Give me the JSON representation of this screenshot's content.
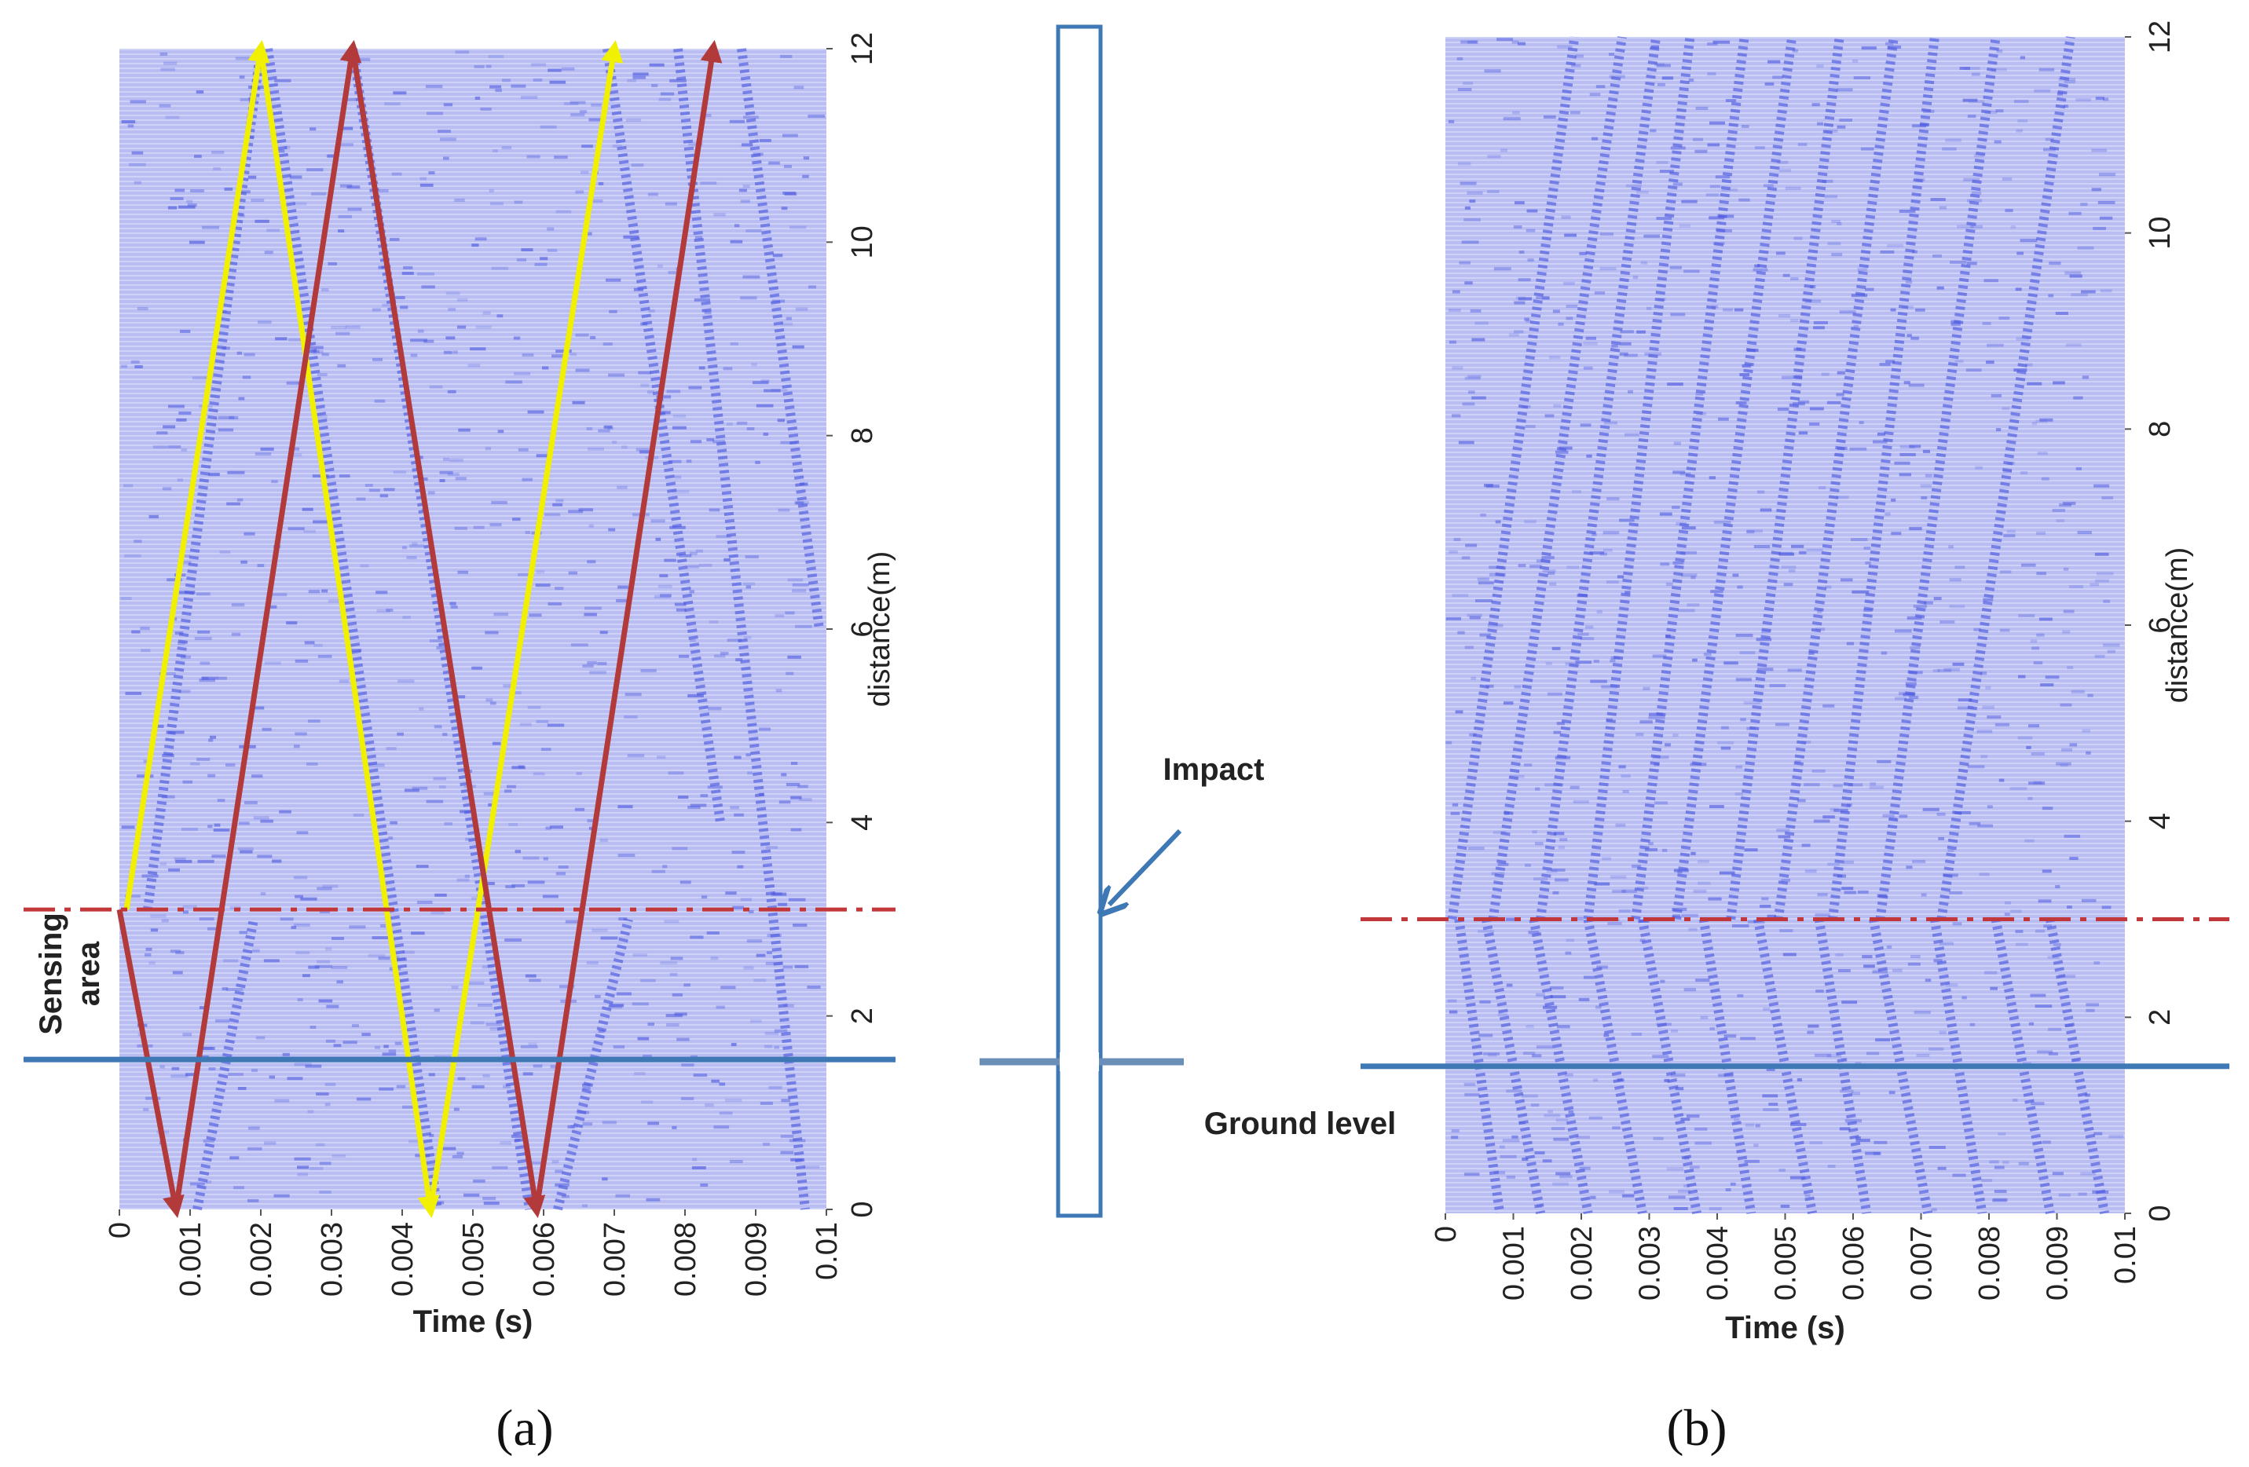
{
  "chart_data": [
    {
      "id": "a",
      "type": "heatmap",
      "description_label": "(a)",
      "caption_letter": "a",
      "xlabel": "Time (s)",
      "ylabel": "distance(m)",
      "xlim": [
        0,
        0.01
      ],
      "ylim": [
        0,
        12
      ],
      "xticks": [
        0,
        0.001,
        0.002,
        0.003,
        0.004,
        0.005,
        0.006,
        0.007,
        0.008,
        0.009,
        0.01
      ],
      "xtick_labels": [
        "0",
        "0.001",
        "0.002",
        "0.003",
        "0.004",
        "0.005",
        "0.006",
        "0.007",
        "0.008",
        "0.009",
        "0.01"
      ],
      "yticks": [
        0,
        2,
        4,
        6,
        8,
        10,
        12
      ],
      "ytick_labels": [
        "0",
        "2",
        "4",
        "6",
        "8",
        "10",
        "12"
      ],
      "dashed_line_distance": 3.1,
      "ground_line_distance": 1.55,
      "sensing_area_label": [
        "Sensing",
        "area"
      ],
      "arrow_paths": [
        {
          "color": "#f0f000",
          "name": "yellow-wave-path",
          "points": [
            [
              0.0001,
              3.1
            ],
            [
              0.002,
              12
            ],
            [
              0.0044,
              0
            ],
            [
              0.007,
              12
            ]
          ]
        },
        {
          "color": "#b23a3a",
          "name": "red-wave-path",
          "points": [
            [
              0.0,
              3.1
            ],
            [
              0.0008,
              0
            ],
            [
              0.0033,
              12
            ],
            [
              0.0059,
              0
            ],
            [
              0.0084,
              12
            ]
          ]
        }
      ],
      "wave_traces": [
        {
          "t0": 0.0004,
          "d0": 3.1,
          "t1": 0.002,
          "d1": 12
        },
        {
          "t0": 0.0021,
          "d0": 12,
          "t1": 0.0045,
          "d1": 0
        },
        {
          "t0": 0.0033,
          "d0": 12,
          "t1": 0.0058,
          "d1": 0
        },
        {
          "t0": 0.0069,
          "d0": 12,
          "t1": 0.0085,
          "d1": 4
        },
        {
          "t0": 0.0079,
          "d0": 12,
          "t1": 0.0097,
          "d1": 0
        },
        {
          "t0": 0.0088,
          "d0": 12,
          "t1": 0.0099,
          "d1": 6
        },
        {
          "t0": 0.0062,
          "d0": 0,
          "t1": 0.0072,
          "d1": 3
        },
        {
          "t0": 0.0011,
          "d0": 0,
          "t1": 0.0019,
          "d1": 3
        }
      ]
    },
    {
      "id": "b",
      "type": "heatmap",
      "description_label": "(b)",
      "caption_letter": "b",
      "xlabel": "Time (s)",
      "ylabel": "distance(m)",
      "xlim": [
        0,
        0.01
      ],
      "ylim": [
        0,
        12
      ],
      "xticks": [
        0,
        0.001,
        0.002,
        0.003,
        0.004,
        0.005,
        0.006,
        0.007,
        0.008,
        0.009,
        0.01
      ],
      "xtick_labels": [
        "0",
        "0.001",
        "0.002",
        "0.003",
        "0.004",
        "0.005",
        "0.006",
        "0.007",
        "0.008",
        "0.009",
        "0.01"
      ],
      "yticks": [
        0,
        2,
        4,
        6,
        8,
        10,
        12
      ],
      "ytick_labels": [
        "0",
        "2",
        "4",
        "6",
        "8",
        "10",
        "12"
      ],
      "dashed_line_distance": 3.0,
      "ground_line_distance": 1.5,
      "wave_traces": [
        {
          "t0": 0.0001,
          "d0": 3.0,
          "t1": 0.0019,
          "d1": 12
        },
        {
          "t0": 0.0002,
          "d0": 3.0,
          "t1": 0.0008,
          "d1": 0
        },
        {
          "t0": 0.0007,
          "d0": 3.0,
          "t1": 0.0026,
          "d1": 12
        },
        {
          "t0": 0.0014,
          "d0": 3.0,
          "t1": 0.0031,
          "d1": 12
        },
        {
          "t0": 0.0021,
          "d0": 3.0,
          "t1": 0.0036,
          "d1": 12
        },
        {
          "t0": 0.0028,
          "d0": 3.0,
          "t1": 0.0044,
          "d1": 12
        },
        {
          "t0": 0.0034,
          "d0": 3.0,
          "t1": 0.0051,
          "d1": 12
        },
        {
          "t0": 0.0042,
          "d0": 3.0,
          "t1": 0.0058,
          "d1": 12
        },
        {
          "t0": 0.0049,
          "d0": 3.0,
          "t1": 0.0066,
          "d1": 12
        },
        {
          "t0": 0.0057,
          "d0": 3.0,
          "t1": 0.0072,
          "d1": 12
        },
        {
          "t0": 0.0064,
          "d0": 3.0,
          "t1": 0.0081,
          "d1": 12
        },
        {
          "t0": 0.0073,
          "d0": 3.0,
          "t1": 0.0092,
          "d1": 12
        },
        {
          "t0": 0.0006,
          "d0": 3.0,
          "t1": 0.0014,
          "d1": 0
        },
        {
          "t0": 0.0013,
          "d0": 3.0,
          "t1": 0.0021,
          "d1": 0
        },
        {
          "t0": 0.0021,
          "d0": 3.0,
          "t1": 0.0029,
          "d1": 0
        },
        {
          "t0": 0.0029,
          "d0": 3.0,
          "t1": 0.0037,
          "d1": 0
        },
        {
          "t0": 0.0038,
          "d0": 3.0,
          "t1": 0.0045,
          "d1": 0
        },
        {
          "t0": 0.0046,
          "d0": 3.0,
          "t1": 0.0054,
          "d1": 0
        },
        {
          "t0": 0.0055,
          "d0": 3.0,
          "t1": 0.0062,
          "d1": 0
        },
        {
          "t0": 0.0063,
          "d0": 3.0,
          "t1": 0.0071,
          "d1": 0
        },
        {
          "t0": 0.0072,
          "d0": 3.0,
          "t1": 0.0079,
          "d1": 0
        },
        {
          "t0": 0.0081,
          "d0": 3.0,
          "t1": 0.0089,
          "d1": 0
        },
        {
          "t0": 0.0089,
          "d0": 3.0,
          "t1": 0.0097,
          "d1": 0
        }
      ]
    }
  ],
  "pile_diagram": {
    "impact_label": "Impact",
    "ground_label": "Ground level"
  },
  "colors": {
    "heatmap_bg": "#b9bdf1",
    "heatmap_stripe": "#cfd2f7",
    "trace": "#4d5ae0",
    "dash_red": "#c2383a",
    "ground_blue": "#3e78b5",
    "pile_blue": "#3e78b5",
    "arrow_yellow": "#f0f000",
    "arrow_red": "#b23a3a"
  }
}
